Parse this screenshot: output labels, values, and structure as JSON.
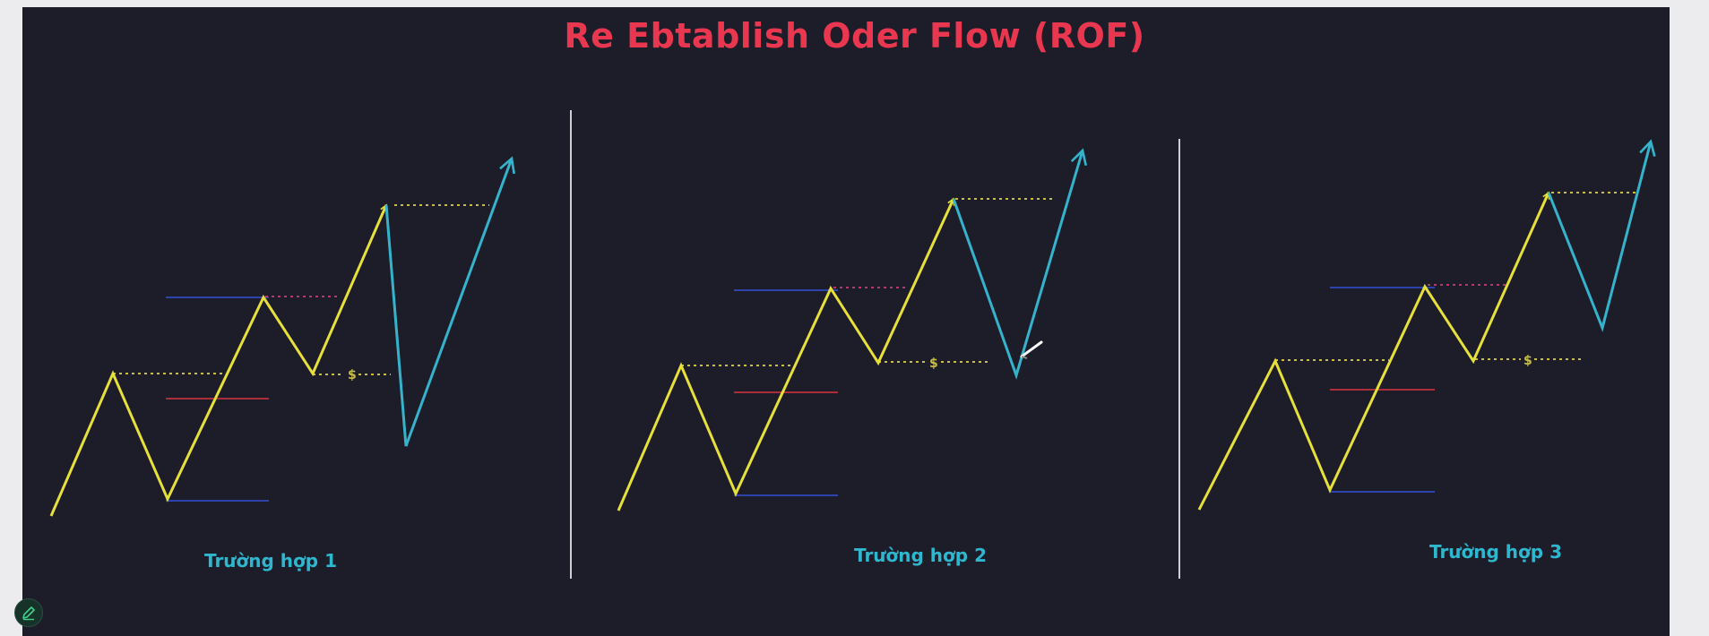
{
  "title": "Re Ebtablish Oder Flow (ROF)",
  "cases": [
    {
      "label": "Trường hợp 1",
      "liquidity_mark": "$"
    },
    {
      "label": "Trường hợp 2",
      "liquidity_mark": "$"
    },
    {
      "label": "Trường hợp 3",
      "liquidity_mark": "$"
    }
  ],
  "colors": {
    "background": "#1c1d29",
    "title": "#e8374f",
    "impulse_leg": "#e7e03a",
    "continuation_leg": "#35b3cc",
    "label": "#2fb7cf",
    "range_line": "#3550d8",
    "mid_line": "#d8353f",
    "level_dotted": "#c9be45",
    "high_dotted": "#b23a6a",
    "divider": "#cfd0d4"
  },
  "icons": {
    "edit": "pencil-icon"
  }
}
